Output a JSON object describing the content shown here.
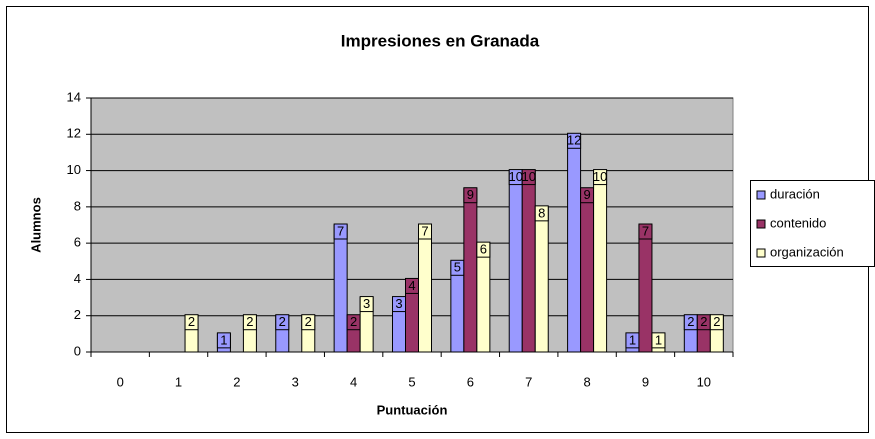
{
  "chart_data": {
    "type": "bar",
    "title": "Impresiones en Granada",
    "x_label": "Puntuación",
    "y_label": "Alumnos",
    "categories": [
      "0",
      "1",
      "2",
      "3",
      "4",
      "5",
      "6",
      "7",
      "8",
      "9",
      "10"
    ],
    "series": [
      {
        "name": "duración",
        "color": "#9999ff",
        "values": [
          0,
          0,
          1,
          2,
          7,
          3,
          5,
          10,
          12,
          1,
          2
        ]
      },
      {
        "name": "contenido",
        "color": "#993366",
        "values": [
          0,
          0,
          0,
          0,
          2,
          4,
          9,
          10,
          9,
          7,
          2
        ]
      },
      {
        "name": "organización",
        "color": "#ffffcc",
        "values": [
          0,
          2,
          2,
          2,
          3,
          7,
          6,
          8,
          10,
          1,
          2
        ]
      }
    ],
    "ylim": [
      0,
      14
    ],
    "yticks": [
      0,
      2,
      4,
      6,
      8,
      10,
      12,
      14
    ],
    "grid": true,
    "legend": "right"
  }
}
